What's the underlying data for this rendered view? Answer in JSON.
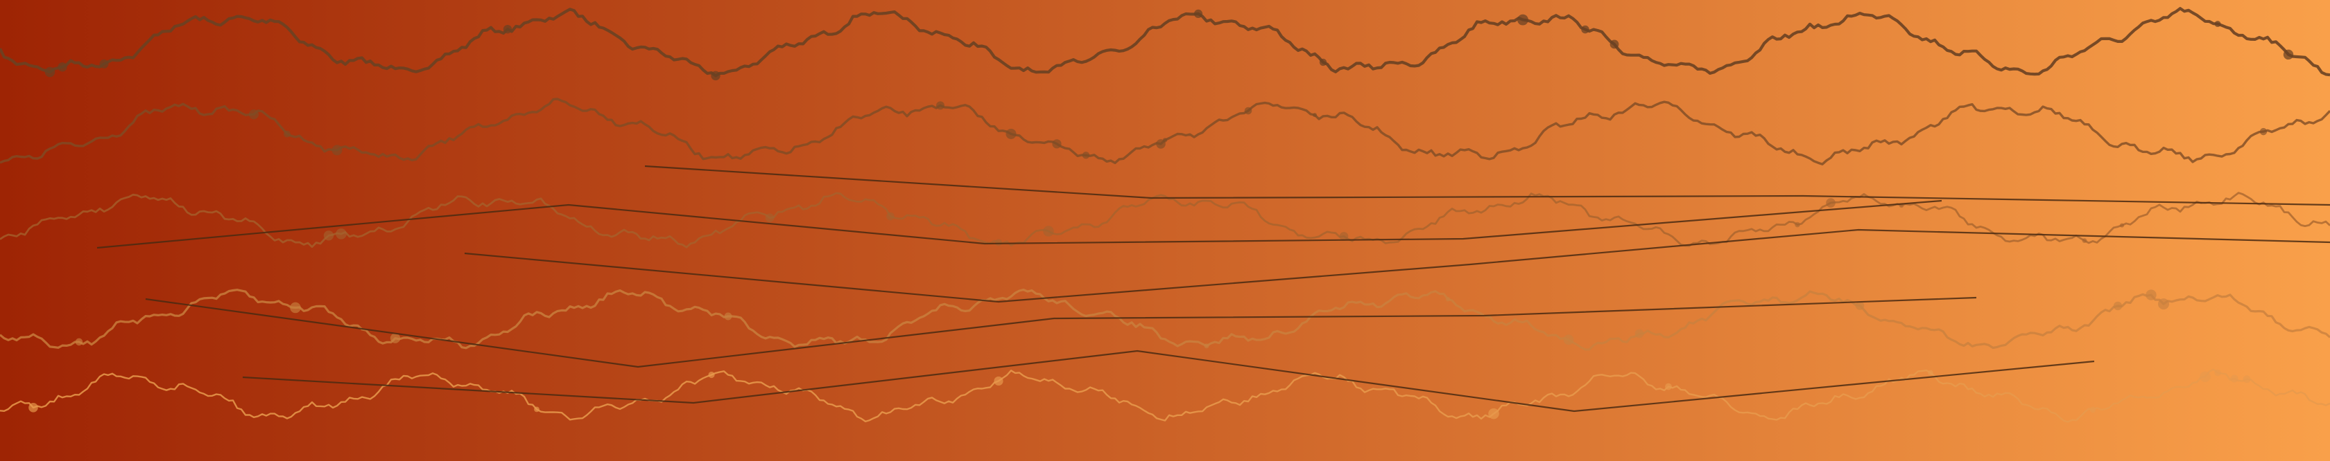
{
  "artwork": {
    "kind": "abstract-wave-pattern",
    "background_gradient": {
      "from": "#9e2404",
      "to": "#f9a04a",
      "direction": "left-to-right"
    },
    "wave_rows": [
      {
        "color": "#6a4122",
        "opacity": 0.9
      },
      {
        "color": "#7e4c26",
        "opacity": 0.8
      },
      {
        "color": "#a4632e",
        "opacity": 0.75
      },
      {
        "color": "#c9813f",
        "opacity": 0.8
      },
      {
        "color": "#e79a4c",
        "opacity": 0.85
      }
    ],
    "connector_line_color": "#4a2a12"
  }
}
